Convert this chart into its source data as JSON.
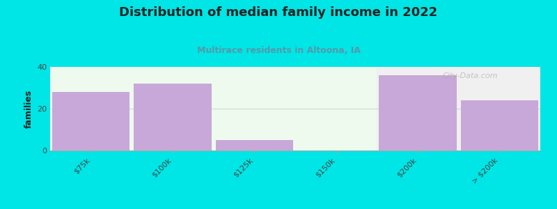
{
  "title": "Distribution of median family income in 2022",
  "subtitle": "Multirace residents in Altoona, IA",
  "categories": [
    "$75k",
    "$100k",
    "$125k",
    "$150k",
    "$200k",
    "> $200k"
  ],
  "values": [
    28,
    32,
    5,
    0,
    36,
    24
  ],
  "bar_color": "#c8a8d8",
  "bg_color": "#00e5e5",
  "plot_bg_green": "#edfaed",
  "plot_bg_gray": "#f0f0f0",
  "ylim": [
    0,
    40
  ],
  "yticks": [
    0,
    20,
    40
  ],
  "ylabel": "families",
  "title_fontsize": 13,
  "subtitle_fontsize": 9,
  "subtitle_color": "#5599aa",
  "title_color": "#222222",
  "watermark": "City-Data.com",
  "split_after_index": 3,
  "grid_color": "#e0e0e0",
  "tick_label_color": "#444444",
  "spine_color": "#aaaaaa"
}
